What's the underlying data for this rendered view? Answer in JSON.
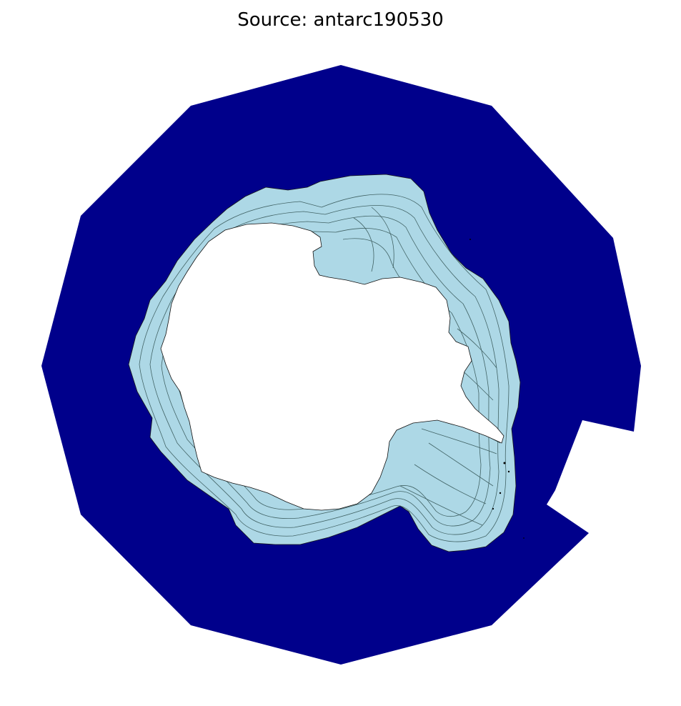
{
  "title": "Source: antarc190530",
  "colors": {
    "ocean": "#00008b",
    "ice_shelf": "#add8e6",
    "land": "#ffffff",
    "contour": "#2f4f4f",
    "background": "#ffffff"
  }
}
